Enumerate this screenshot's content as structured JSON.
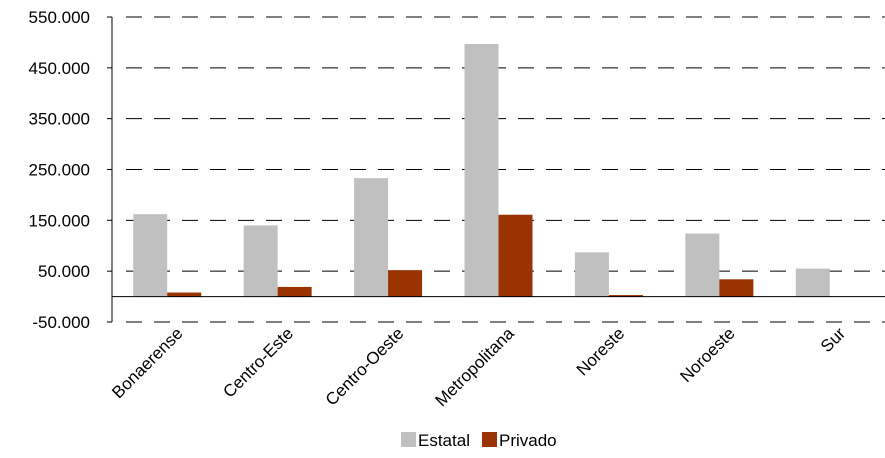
{
  "chart_data": {
    "type": "bar",
    "categories": [
      "Bonaerense",
      "Centro-Este",
      "Centro-Oeste",
      "Metropolitana",
      "Noreste",
      "Noroeste",
      "Sur"
    ],
    "series": [
      {
        "name": "Estatal",
        "color": "#c0c0c0",
        "values": [
          162000,
          140000,
          233000,
          497000,
          87000,
          124000,
          55000
        ]
      },
      {
        "name": "Privado",
        "color": "#993300",
        "values": [
          8000,
          19000,
          52000,
          161000,
          3000,
          34000,
          0
        ]
      }
    ],
    "y_ticks": [
      "550.000",
      "450.000",
      "350.000",
      "250.000",
      "150.000",
      "50.000",
      "-50.000"
    ],
    "y_tick_values": [
      550000,
      450000,
      350000,
      250000,
      150000,
      50000,
      -50000
    ],
    "ylim": [
      -50000,
      550000
    ],
    "grid": true,
    "grid_style": "dashed",
    "legend_position": "bottom"
  }
}
